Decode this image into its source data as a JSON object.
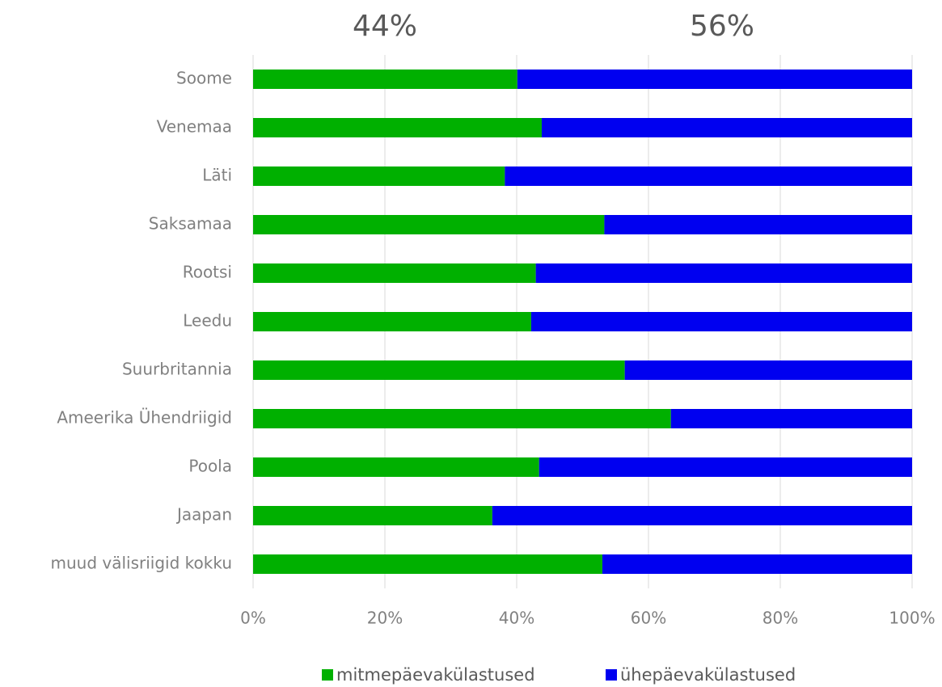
{
  "chart_data": {
    "type": "stacked-bar-horizontal",
    "annotations": [
      "44%",
      "56%"
    ],
    "categories": [
      "Soome",
      "Venemaa",
      "Läti",
      "Saksamaa",
      "Rootsi",
      "Leedu",
      "Suurbritannia",
      "Ameerika Ühendriigid",
      "Poola",
      "Jaapan",
      "muud välisriigid kokku"
    ],
    "series": [
      {
        "name": "mitmepäevakülastused",
        "color": "#00b000",
        "values": [
          40.1,
          43.8,
          38.2,
          53.3,
          42.9,
          42.2,
          56.4,
          63.4,
          43.4,
          36.3,
          53.0
        ]
      },
      {
        "name": "ühepäevakülastused",
        "color": "#0000f0",
        "values": [
          59.9,
          56.2,
          61.8,
          46.7,
          57.1,
          57.8,
          43.6,
          36.6,
          56.6,
          63.7,
          47.0
        ]
      }
    ],
    "xlim": [
      0,
      100
    ],
    "xticks": [
      {
        "value": 0,
        "label": "0%"
      },
      {
        "value": 20,
        "label": "20%"
      },
      {
        "value": 40,
        "label": "40%"
      },
      {
        "value": 60,
        "label": "60%"
      },
      {
        "value": 80,
        "label": "80%"
      },
      {
        "value": 100,
        "label": "100%"
      }
    ],
    "grid": true,
    "legend": "bottom"
  }
}
